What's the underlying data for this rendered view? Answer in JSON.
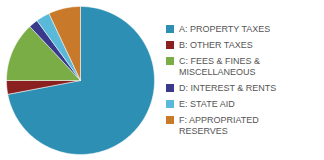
{
  "chart_data": {
    "type": "pie",
    "categories": [
      "A: PROPERTY TAXES",
      "B: OTHER TAXES",
      "C: FEES & FINES &\nMISCELLANEOUS",
      "D: INTEREST & RENTS",
      "E: STATE AID",
      "F: APPROPRIATED\nRESERVES"
    ],
    "values": [
      72,
      3,
      13,
      2,
      3,
      7
    ],
    "colors": [
      "#2e8fb5",
      "#8b2020",
      "#7aad45",
      "#3a3a8c",
      "#5ab8d8",
      "#c87a2a"
    ],
    "legend": "right"
  }
}
